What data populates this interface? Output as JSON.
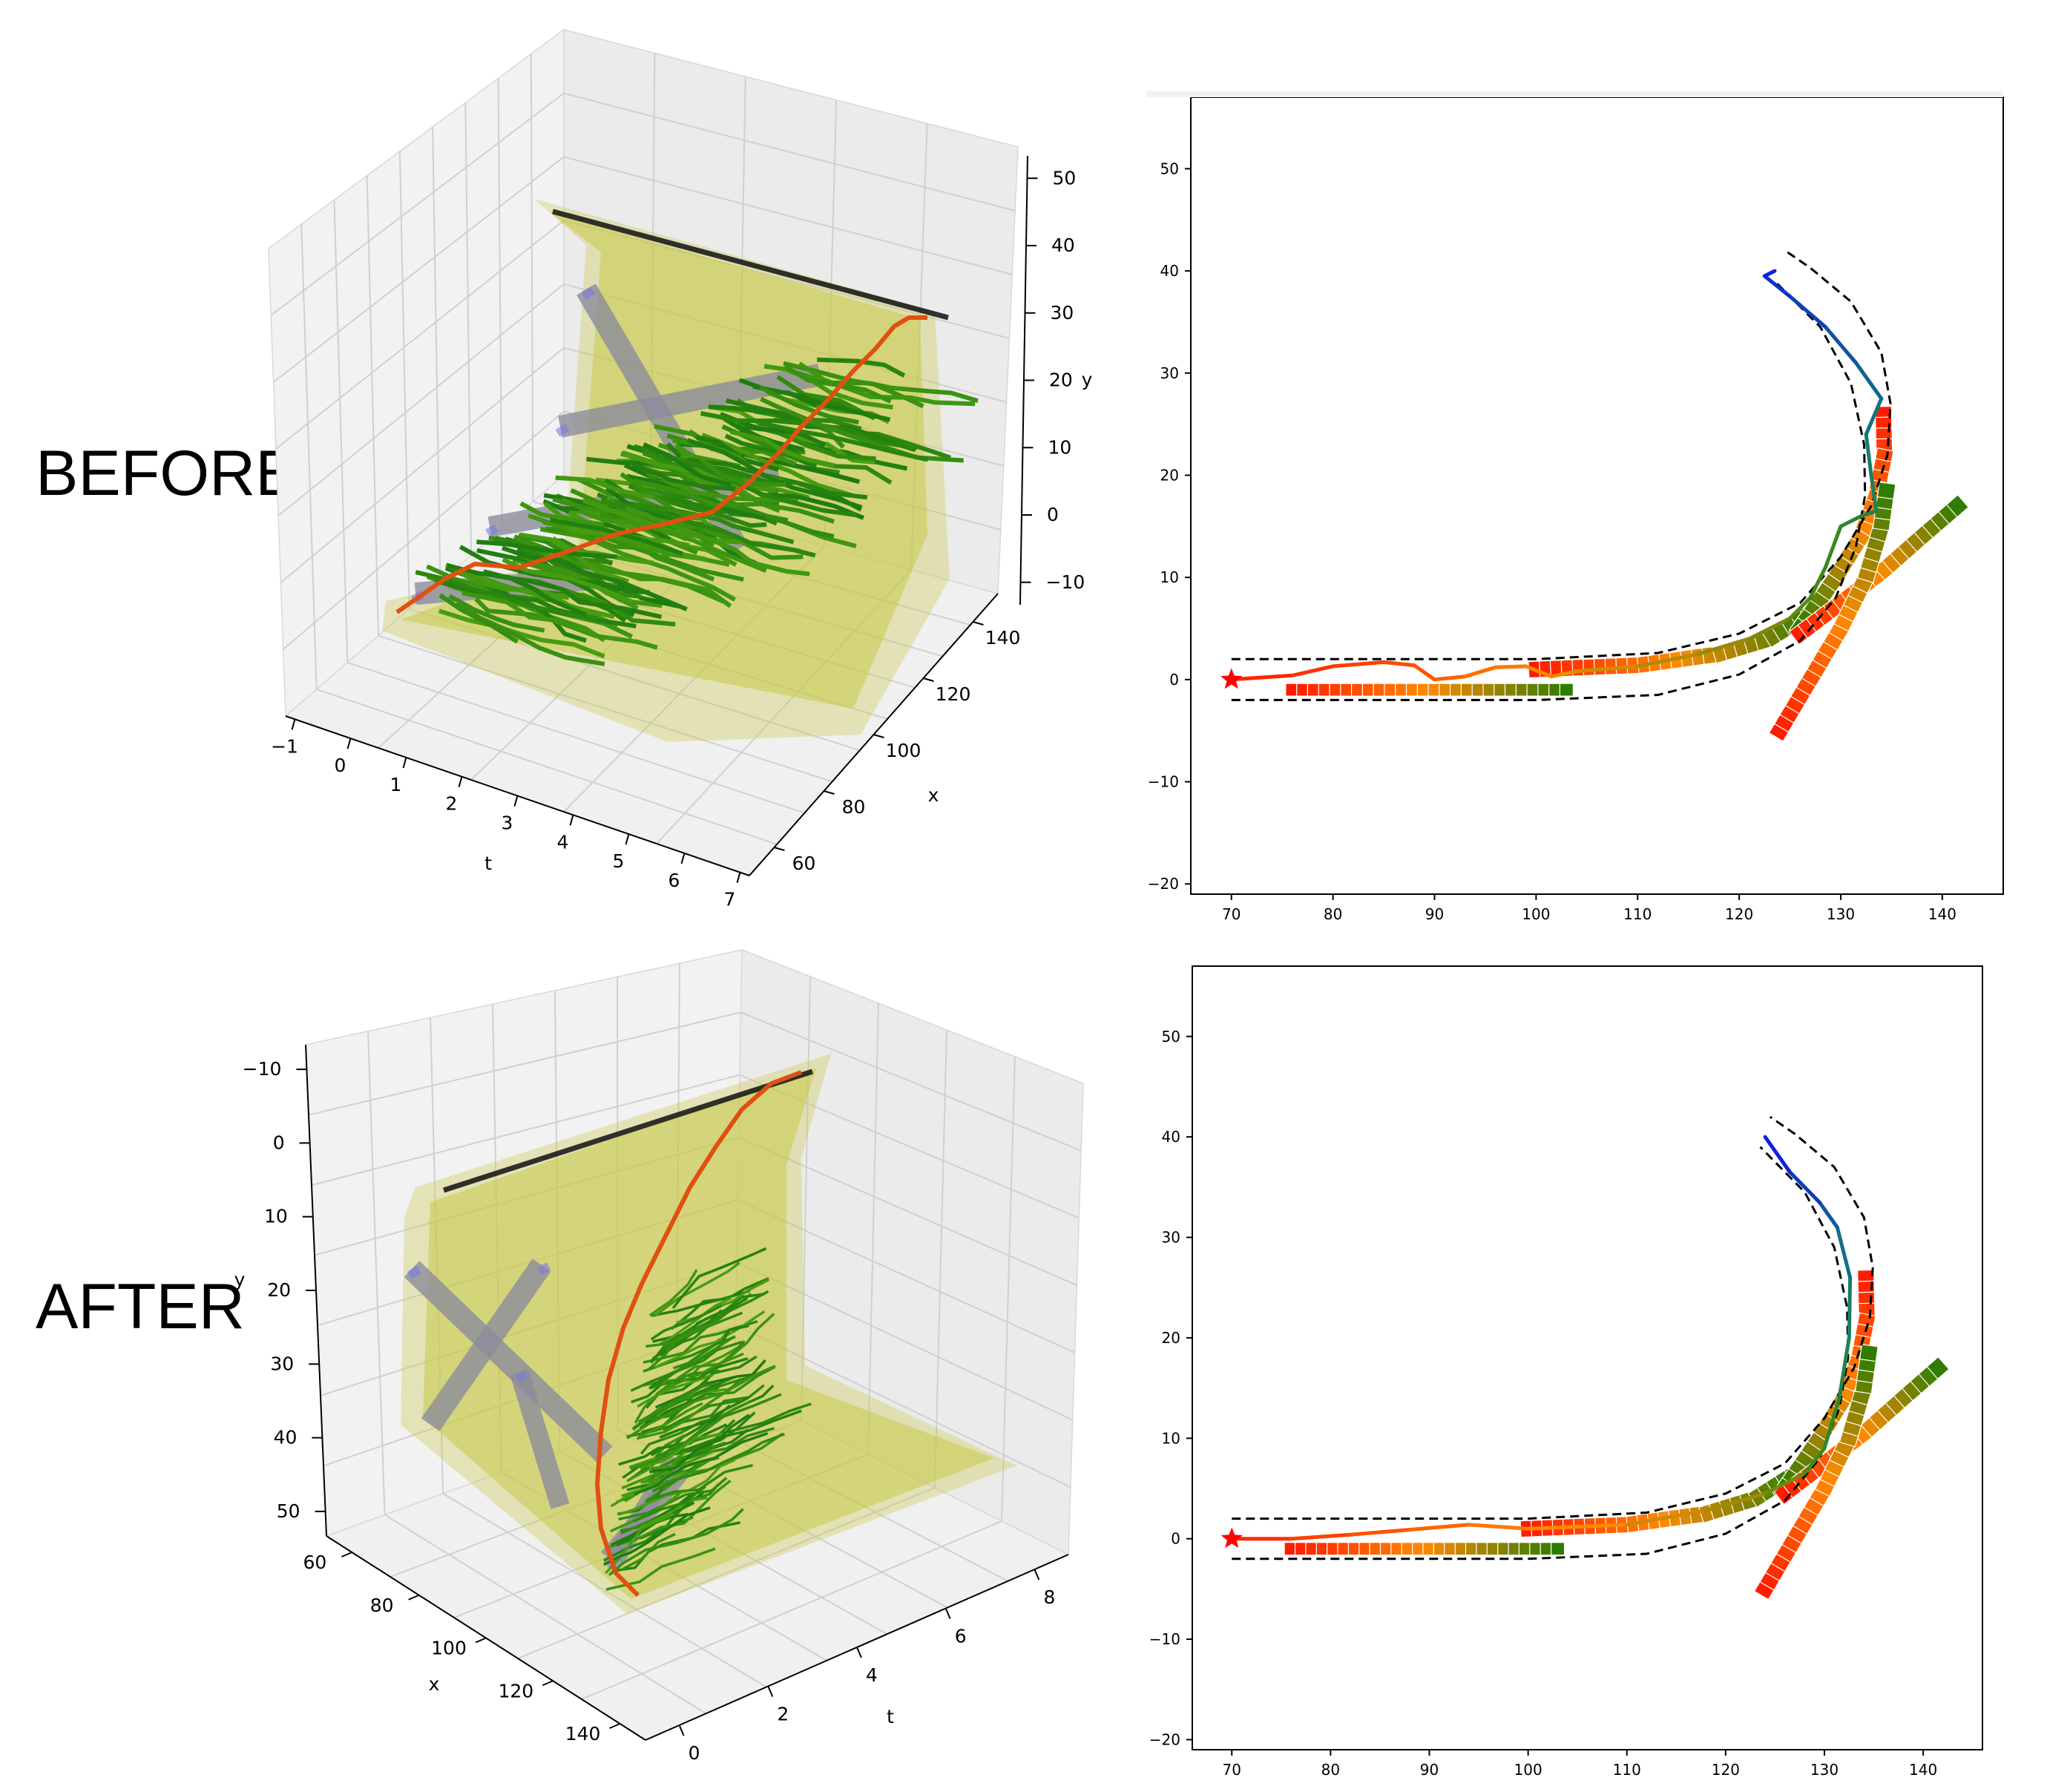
{
  "labels": {
    "before": "BEFORE",
    "after": "AFTER"
  },
  "colors": {
    "corridor": "#c8c84a",
    "obstacle": "#8c8c9c",
    "tree": "#3c9a10",
    "best": "#e05010",
    "goal": "#111111",
    "dashed": "#000000",
    "ego_start": "#ff0000",
    "agent_start": "#ff0000",
    "agent_end": "#2e7d00"
  },
  "chart_data": [
    {
      "id": "before-3d",
      "type": "3d-line",
      "panel": "before",
      "axes": {
        "t": {
          "label": "t",
          "ticks": [
            "-1",
            "0",
            "1",
            "2",
            "3",
            "4",
            "5",
            "6",
            "7"
          ]
        },
        "x": {
          "label": "x",
          "ticks": [
            "60",
            "80",
            "100",
            "120",
            "140"
          ]
        },
        "y": {
          "label": "y",
          "ticks": [
            "-10",
            "0",
            "10",
            "20",
            "30",
            "40",
            "50"
          ]
        }
      },
      "series": [
        {
          "role": "best-trajectory",
          "color": "#e05010"
        },
        {
          "role": "tree",
          "color": "#3c9a10"
        },
        {
          "role": "goal",
          "color": "#111111"
        }
      ]
    },
    {
      "id": "before-2d",
      "type": "line",
      "panel": "before",
      "xlim": [
        66,
        146
      ],
      "ylim": [
        -21,
        57
      ],
      "xticks": [
        70,
        80,
        90,
        100,
        110,
        120,
        130,
        140
      ],
      "yticks": [
        -20,
        -10,
        0,
        10,
        20,
        30,
        40,
        50
      ],
      "lane_dashed": [
        {
          "points": [
            [
              70,
              2
            ],
            [
              100,
              2
            ],
            [
              112,
              2.6
            ],
            [
              120,
              4.5
            ],
            [
              126,
              7.5
            ],
            [
              130,
              12
            ],
            [
              133,
              17
            ],
            [
              134.6,
              22
            ],
            [
              134.9,
              27
            ],
            [
              134,
              32
            ],
            [
              131,
              37
            ],
            [
              127,
              40.3
            ],
            [
              124.5,
              42
            ]
          ]
        },
        {
          "points": [
            [
              70,
              -2
            ],
            [
              100,
              -2
            ],
            [
              112,
              -1.5
            ],
            [
              120,
              0.5
            ],
            [
              126,
              3.8
            ],
            [
              129.5,
              8
            ],
            [
              131.5,
              13
            ],
            [
              132.4,
              18
            ],
            [
              132.3,
              23
            ],
            [
              131,
              29
            ],
            [
              128,
              34.5
            ],
            [
              123.5,
              39
            ]
          ]
        }
      ],
      "ego_path": {
        "start": [
          70,
          0
        ],
        "points": [
          [
            70,
            0
          ],
          [
            76,
            0.4
          ],
          [
            80,
            1.3
          ],
          [
            85,
            1.7
          ],
          [
            88,
            1.4
          ],
          [
            90,
            0
          ],
          [
            93,
            0.3
          ],
          [
            96,
            1.2
          ],
          [
            99,
            1.3
          ],
          [
            101.5,
            0.3
          ],
          [
            104,
            0.8
          ],
          [
            110,
            1.3
          ],
          [
            116,
            2.5
          ],
          [
            121,
            4
          ],
          [
            125,
            6
          ],
          [
            127,
            8
          ],
          [
            128.5,
            11
          ],
          [
            130,
            15
          ],
          [
            132,
            16
          ],
          [
            133.5,
            16.5
          ],
          [
            133,
            20
          ],
          [
            132.5,
            24
          ],
          [
            134,
            27.5
          ],
          [
            131.5,
            31
          ],
          [
            128.5,
            34.5
          ],
          [
            125,
            37.5
          ],
          [
            122.5,
            39.5
          ],
          [
            123.5,
            40
          ]
        ]
      },
      "agent_blocks": [
        {
          "points": [
            [
              76,
              -1
            ],
            [
              103,
              -1
            ]
          ]
        },
        {
          "points": [
            [
              100,
              1
            ],
            [
              110,
              1.4
            ],
            [
              118,
              2.5
            ],
            [
              123,
              4
            ],
            [
              127,
              6.5
            ]
          ]
        },
        {
          "points": [
            [
              134.2,
              26
            ],
            [
              134.3,
              22
            ],
            [
              133.5,
              18
            ],
            [
              132,
              14
            ],
            [
              129.5,
              10
            ],
            [
              126,
              5
            ]
          ]
        },
        {
          "points": [
            [
              126,
              4.5
            ],
            [
              130,
              7.5
            ],
            [
              134,
              10.5
            ],
            [
              138,
              14
            ],
            [
              141.5,
              17
            ]
          ]
        },
        {
          "points": [
            [
              124,
              -5
            ],
            [
              127,
              0
            ],
            [
              130,
              5
            ],
            [
              132.5,
              10
            ],
            [
              134,
              15
            ],
            [
              134.5,
              18.5
            ]
          ]
        }
      ]
    },
    {
      "id": "after-3d",
      "type": "3d-line",
      "panel": "after",
      "axes": {
        "t": {
          "label": "t",
          "ticks": [
            "0",
            "2",
            "4",
            "6",
            "8"
          ]
        },
        "x": {
          "label": "x",
          "ticks": [
            "60",
            "80",
            "100",
            "120",
            "140"
          ]
        },
        "y": {
          "label": "y",
          "ticks": [
            "-10",
            "0",
            "10",
            "20",
            "30",
            "40",
            "50"
          ]
        }
      },
      "series": [
        {
          "role": "best-trajectory",
          "color": "#e05010"
        },
        {
          "role": "tree",
          "color": "#3c9a10"
        },
        {
          "role": "goal",
          "color": "#111111"
        }
      ]
    },
    {
      "id": "after-2d",
      "type": "line",
      "panel": "after",
      "xlim": [
        66,
        146
      ],
      "ylim": [
        -21,
        57
      ],
      "xticks": [
        70,
        80,
        90,
        100,
        110,
        120,
        130,
        140
      ],
      "yticks": [
        -20,
        -10,
        0,
        10,
        20,
        30,
        40,
        50
      ],
      "lane_dashed": [
        {
          "points": [
            [
              70,
              2
            ],
            [
              100,
              2
            ],
            [
              112,
              2.6
            ],
            [
              120,
              4.5
            ],
            [
              126,
              7.5
            ],
            [
              130,
              12
            ],
            [
              133,
              17
            ],
            [
              134.6,
              22
            ],
            [
              134.9,
              27
            ],
            [
              134,
              32
            ],
            [
              131,
              37
            ],
            [
              127,
              40.3
            ],
            [
              124.5,
              42
            ]
          ]
        },
        {
          "points": [
            [
              70,
              -2
            ],
            [
              100,
              -2
            ],
            [
              112,
              -1.5
            ],
            [
              120,
              0.5
            ],
            [
              126,
              3.8
            ],
            [
              129.5,
              8
            ],
            [
              131.5,
              13
            ],
            [
              132.4,
              18
            ],
            [
              132.3,
              23
            ],
            [
              131,
              29
            ],
            [
              128,
              34.5
            ],
            [
              123.5,
              39
            ]
          ]
        }
      ],
      "ego_path": {
        "start": [
          70,
          0
        ],
        "points": [
          [
            70,
            0
          ],
          [
            76,
            0
          ],
          [
            82,
            0.4
          ],
          [
            88,
            0.9
          ],
          [
            94,
            1.4
          ],
          [
            100,
            1
          ],
          [
            110,
            1.4
          ],
          [
            118,
            2.8
          ],
          [
            124,
            4.5
          ],
          [
            128,
            6.5
          ],
          [
            130,
            9
          ],
          [
            131.5,
            14
          ],
          [
            132.5,
            20
          ],
          [
            132.6,
            26
          ],
          [
            131.3,
            31
          ],
          [
            129.5,
            33.5
          ],
          [
            126.5,
            36.5
          ],
          [
            124,
            40
          ]
        ]
      },
      "agent_blocks": [
        {
          "points": [
            [
              76,
              -1
            ],
            [
              103,
              -1
            ]
          ]
        },
        {
          "points": [
            [
              100,
              1
            ],
            [
              110,
              1.4
            ],
            [
              118,
              2.5
            ],
            [
              123,
              4
            ],
            [
              127,
              6.5
            ]
          ]
        },
        {
          "points": [
            [
              134.2,
              26
            ],
            [
              134.3,
              22
            ],
            [
              133.5,
              18
            ],
            [
              132,
              14
            ],
            [
              129.5,
              10
            ],
            [
              126,
              5
            ]
          ]
        },
        {
          "points": [
            [
              126,
              4.5
            ],
            [
              130,
              7.5
            ],
            [
              134,
              10.5
            ],
            [
              138,
              14
            ],
            [
              141.5,
              17
            ]
          ]
        },
        {
          "points": [
            [
              124,
              -5
            ],
            [
              127,
              0
            ],
            [
              130,
              5
            ],
            [
              132.5,
              10
            ],
            [
              134,
              15
            ],
            [
              134.5,
              18.5
            ]
          ]
        }
      ]
    }
  ]
}
